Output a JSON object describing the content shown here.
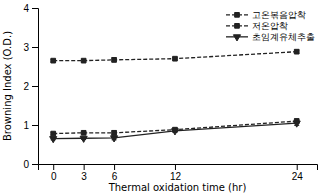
{
  "chart_data": {
    "type": "line",
    "x": [
      0,
      3,
      6,
      12,
      24
    ],
    "series": [
      {
        "name": "고온볶음압착",
        "values": [
          2.65,
          2.65,
          2.67,
          2.7,
          2.88
        ],
        "errors": [
          0.03,
          0.03,
          0.05,
          0.03,
          0.04
        ],
        "color": "#222222",
        "marker": "square",
        "line_style": "dashed"
      },
      {
        "name": "저온압착",
        "values": [
          0.78,
          0.8,
          0.8,
          0.88,
          1.1
        ],
        "errors": [
          0.03,
          0.03,
          0.05,
          0.04,
          0.06
        ],
        "color": "#222222",
        "marker": "square",
        "line_style": "dashed"
      },
      {
        "name": "초임계유체추출",
        "values": [
          0.65,
          0.66,
          0.67,
          0.85,
          1.05
        ],
        "errors": [
          0.03,
          0.03,
          0.05,
          0.04,
          0.06
        ],
        "color": "#222222",
        "marker": "triangle-down",
        "line_style": "solid"
      }
    ],
    "xlabel": "Thermal oxidation time (hr)",
    "ylabel": "Browning Index (O.D.)",
    "xlim": [
      -1.5,
      26
    ],
    "ylim": [
      0,
      4
    ],
    "xticks": [
      0,
      3,
      6,
      12,
      24
    ],
    "yticks": [
      0,
      1,
      2,
      3,
      4
    ],
    "legend": "upper right",
    "grid": false
  }
}
